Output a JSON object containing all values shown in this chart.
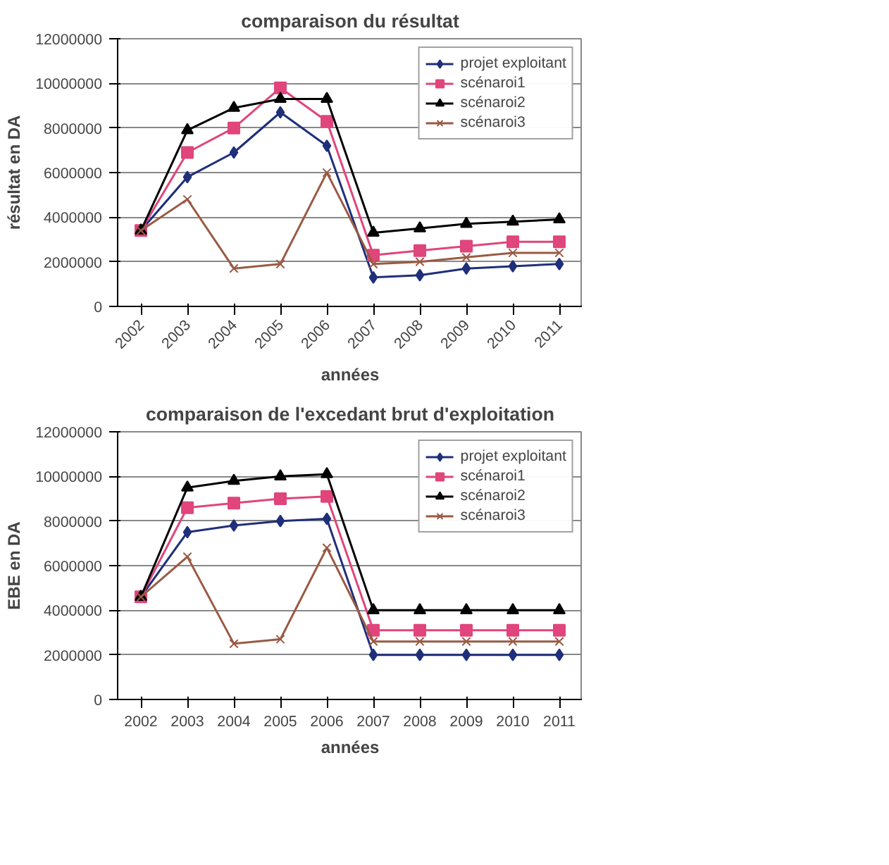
{
  "chart_data": [
    {
      "type": "line",
      "title": "comparaison du résultat",
      "xlabel": "années",
      "ylabel": "résultat en DA",
      "categories": [
        "2002",
        "2003",
        "2004",
        "2005",
        "2006",
        "2007",
        "2008",
        "2009",
        "2010",
        "2011"
      ],
      "ylim": [
        0,
        12000000
      ],
      "yticks": [
        0,
        2000000,
        4000000,
        6000000,
        8000000,
        10000000,
        12000000
      ],
      "grid": "y",
      "legend": "top right",
      "series": [
        {
          "name": "projet exploitant",
          "color": "#1f2f7a",
          "marker": "diamond",
          "values": [
            3400000,
            5800000,
            6900000,
            8700000,
            7200000,
            1300000,
            1400000,
            1700000,
            1800000,
            1900000
          ]
        },
        {
          "name": "scénaroi1",
          "color": "#e0457b",
          "marker": "square",
          "values": [
            3400000,
            6900000,
            8000000,
            9800000,
            8300000,
            2300000,
            2500000,
            2700000,
            2900000,
            2900000
          ]
        },
        {
          "name": "scénaroi2",
          "color": "#000000",
          "marker": "triangle",
          "values": [
            3400000,
            7900000,
            8900000,
            9300000,
            9300000,
            3300000,
            3500000,
            3700000,
            3800000,
            3900000
          ]
        },
        {
          "name": "scénaroi3",
          "color": "#9a5a44",
          "marker": "cross",
          "values": [
            3400000,
            4800000,
            1700000,
            1900000,
            6000000,
            1900000,
            2000000,
            2200000,
            2400000,
            2400000
          ]
        }
      ]
    },
    {
      "type": "line",
      "title": "comparaison de l'excedant brut d'exploitation",
      "xlabel": "années",
      "ylabel": "EBE en DA",
      "categories": [
        "2002",
        "2003",
        "2004",
        "2005",
        "2006",
        "2007",
        "2008",
        "2009",
        "2010",
        "2011"
      ],
      "ylim": [
        0,
        12000000
      ],
      "yticks": [
        0,
        2000000,
        4000000,
        6000000,
        8000000,
        10000000,
        12000000
      ],
      "grid": "y",
      "legend": "top right",
      "series": [
        {
          "name": "projet exploitant",
          "color": "#1f2f7a",
          "marker": "diamond",
          "values": [
            4600000,
            7500000,
            7800000,
            8000000,
            8100000,
            2000000,
            2000000,
            2000000,
            2000000,
            2000000
          ]
        },
        {
          "name": "scénaroi1",
          "color": "#e0457b",
          "marker": "square",
          "values": [
            4600000,
            8600000,
            8800000,
            9000000,
            9100000,
            3100000,
            3100000,
            3100000,
            3100000,
            3100000
          ]
        },
        {
          "name": "scénaroi2",
          "color": "#000000",
          "marker": "triangle",
          "values": [
            4600000,
            9500000,
            9800000,
            10000000,
            10100000,
            4000000,
            4000000,
            4000000,
            4000000,
            4000000
          ]
        },
        {
          "name": "scénaroi3",
          "color": "#9a5a44",
          "marker": "cross",
          "values": [
            4600000,
            6400000,
            2500000,
            2700000,
            6800000,
            2600000,
            2600000,
            2600000,
            2600000,
            2600000
          ]
        }
      ]
    }
  ]
}
